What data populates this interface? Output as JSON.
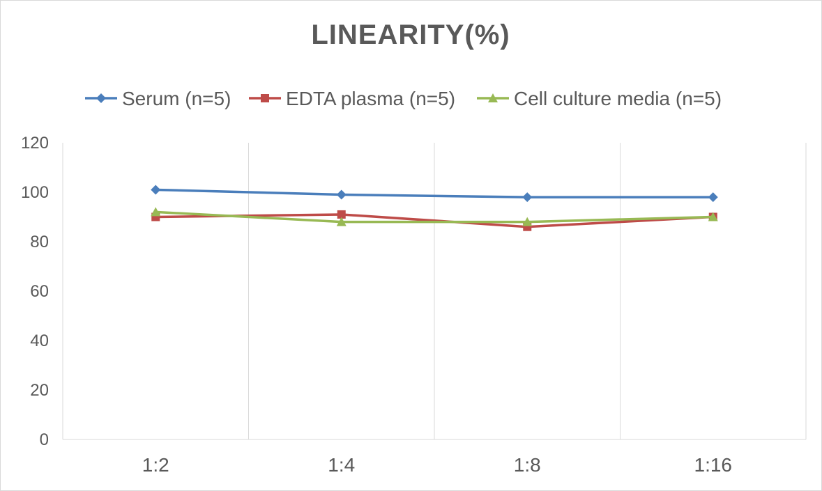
{
  "chart_data": {
    "type": "line",
    "title": "LINEARITY(%)",
    "categories": [
      "1:2",
      "1:4",
      "1:8",
      "1:16"
    ],
    "series": [
      {
        "name": "Serum (n=5)",
        "values": [
          101,
          99,
          98,
          98
        ],
        "color": "#4a7ebb",
        "marker": "diamond"
      },
      {
        "name": "EDTA plasma (n=5)",
        "values": [
          90,
          91,
          86,
          90
        ],
        "color": "#be4b48",
        "marker": "square"
      },
      {
        "name": "Cell culture media (n=5)",
        "values": [
          92,
          88,
          88,
          90
        ],
        "color": "#98b954",
        "marker": "triangle"
      }
    ],
    "ylim": [
      0,
      120
    ],
    "yticks": [
      0,
      20,
      40,
      60,
      80,
      100,
      120
    ],
    "grid": "vertical",
    "legend_position": "top"
  }
}
